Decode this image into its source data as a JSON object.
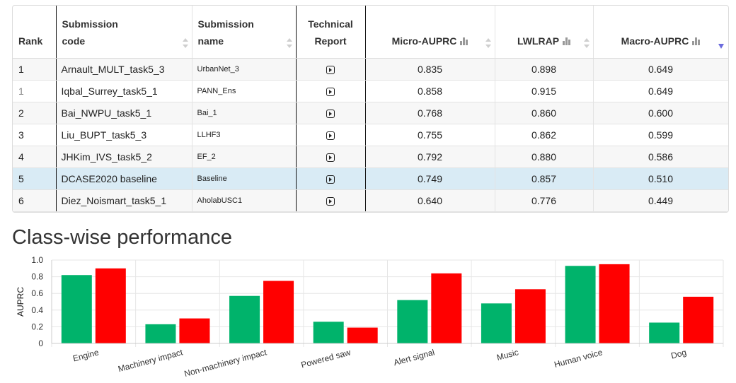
{
  "table": {
    "headers": {
      "rank": "Rank",
      "code_line1": "Submission",
      "code_line2": "code",
      "name_line1": "Submission",
      "name_line2": "name",
      "report_line1": "Technical",
      "report_line2": "Report",
      "micro": "Micro-AUPRC",
      "lwlrap": "LWLRAP",
      "macro": "Macro-AUPRC"
    },
    "sort_column": "Macro-AUPRC",
    "sort_direction": "descending",
    "rows": [
      {
        "rank": "1",
        "code": "Arnault_MULT_task5_3",
        "name": "UrbanNet_3",
        "micro": "0.835",
        "lwlrap": "0.898",
        "macro": "0.649"
      },
      {
        "rank": "1",
        "code": "Iqbal_Surrey_task5_1",
        "name": "PANN_Ens",
        "micro": "0.858",
        "lwlrap": "0.915",
        "macro": "0.649"
      },
      {
        "rank": "2",
        "code": "Bai_NWPU_task5_1",
        "name": "Bai_1",
        "micro": "0.768",
        "lwlrap": "0.860",
        "macro": "0.600"
      },
      {
        "rank": "3",
        "code": "Liu_BUPT_task5_3",
        "name": "LLHF3",
        "micro": "0.755",
        "lwlrap": "0.862",
        "macro": "0.599"
      },
      {
        "rank": "4",
        "code": "JHKim_IVS_task5_2",
        "name": "EF_2",
        "micro": "0.792",
        "lwlrap": "0.880",
        "macro": "0.586"
      },
      {
        "rank": "5",
        "code": "DCASE2020 baseline",
        "name": "Baseline",
        "micro": "0.749",
        "lwlrap": "0.857",
        "macro": "0.510"
      },
      {
        "rank": "6",
        "code": "Diez_Noismart_task5_1",
        "name": "AholabUSC1",
        "micro": "0.640",
        "lwlrap": "0.776",
        "macro": "0.449"
      }
    ],
    "highlight_row": 5,
    "report_icon": "document-play-icon",
    "metric_icon": "bar-chart-icon"
  },
  "section_title": "Class-wise performance",
  "colors": {
    "series_green": "#00b36b",
    "series_red": "#ff0000",
    "highlight": "#d9ebf5"
  },
  "chart_data": {
    "type": "bar",
    "title": "",
    "xlabel": "",
    "ylabel": "AUPRC",
    "ylim": [
      0,
      1.0
    ],
    "yticks": [
      "0",
      "0.2",
      "0.4",
      "0.6",
      "0.8",
      "1.0"
    ],
    "grid": true,
    "categories": [
      "Engine",
      "Machinery impact",
      "Non-machinery impact",
      "Powered saw",
      "Alert signal",
      "Music",
      "Human voice",
      "Dog"
    ],
    "series": [
      {
        "color": "#00b36b",
        "values": [
          0.82,
          0.23,
          0.57,
          0.26,
          0.52,
          0.48,
          0.93,
          0.25
        ]
      },
      {
        "color": "#ff0000",
        "values": [
          0.9,
          0.3,
          0.75,
          0.19,
          0.84,
          0.65,
          0.95,
          0.56
        ]
      }
    ]
  }
}
